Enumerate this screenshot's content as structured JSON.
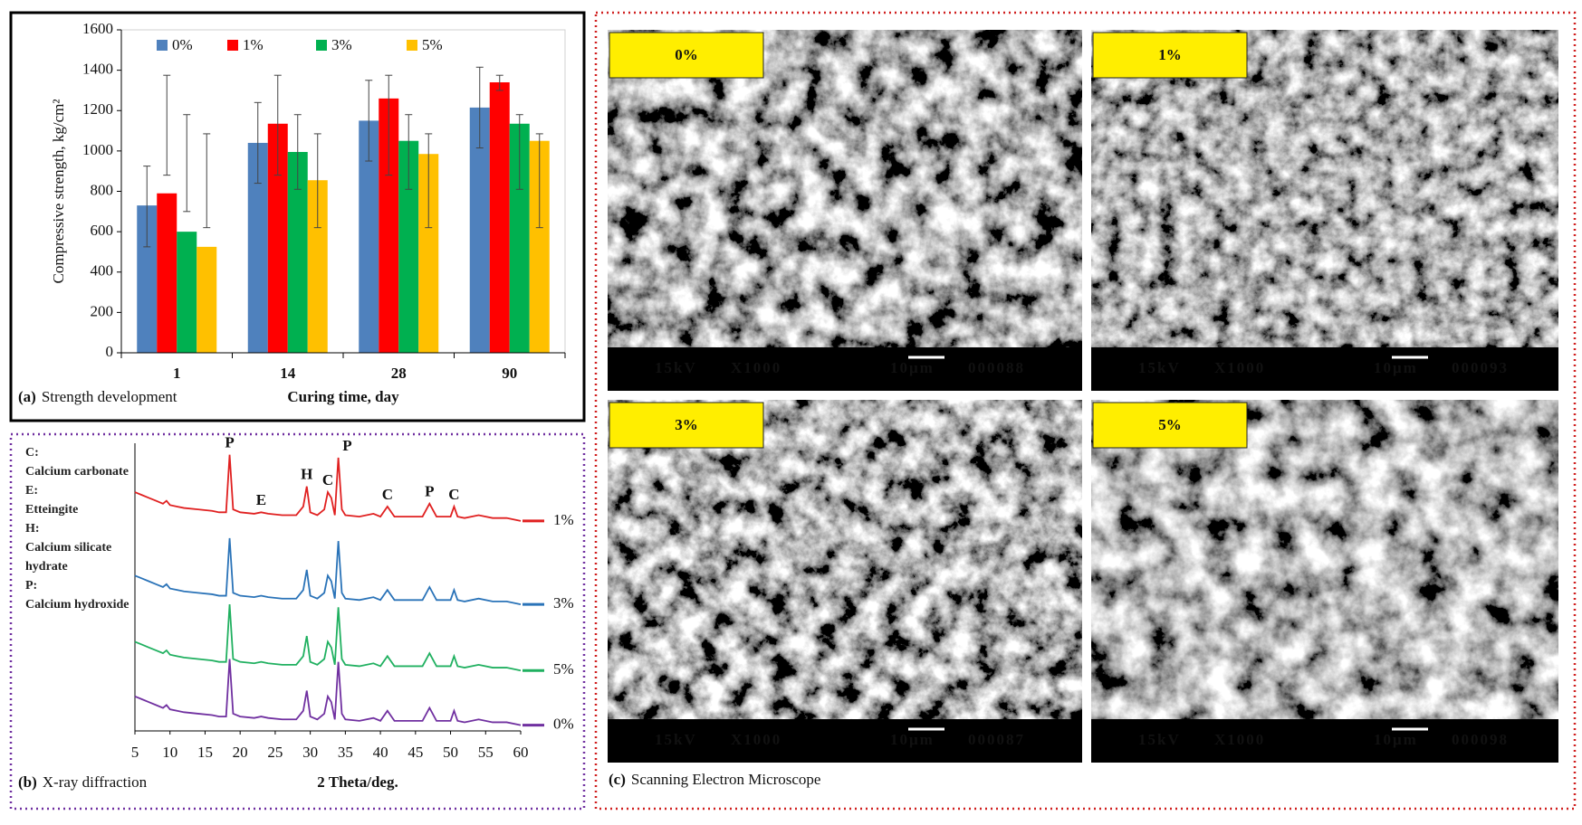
{
  "chart_data": [
    {
      "type": "bar",
      "ylabel": "Compressive strength, kg/cm²",
      "xlabel": "Curing time, day",
      "caption": {
        "label": "(a)",
        "text": "Strength development"
      },
      "categories": [
        "1",
        "14",
        "28",
        "90"
      ],
      "ylim": [
        0,
        1600
      ],
      "yticks": [
        0,
        200,
        400,
        600,
        800,
        1000,
        1200,
        1400,
        1600
      ],
      "grid": false,
      "legend": "top",
      "series": [
        {
          "name": "0%",
          "color": "#4f81bd",
          "values": [
            730,
            1040,
            1150,
            1215
          ],
          "error_bars": [
            [
              525,
              925
            ],
            [
              840,
              1240
            ],
            [
              950,
              1350
            ],
            [
              1015,
              1415
            ]
          ]
        },
        {
          "name": "1%",
          "color": "#ff0000",
          "values": [
            790,
            1135,
            1260,
            1340
          ],
          "error_bars": [
            [
              880,
              1375
            ],
            [
              880,
              1375
            ],
            [
              880,
              1375
            ],
            [
              1300,
              1375
            ]
          ]
        },
        {
          "name": "3%",
          "color": "#00b050",
          "values": [
            600,
            995,
            1050,
            1135
          ],
          "error_bars": [
            [
              700,
              1180
            ],
            [
              810,
              1180
            ],
            [
              810,
              1180
            ],
            [
              810,
              1180
            ]
          ]
        },
        {
          "name": "5%",
          "color": "#ffc000",
          "values": [
            525,
            855,
            985,
            1050
          ],
          "error_bars": [
            [
              620,
              1085
            ],
            [
              620,
              1085
            ],
            [
              620,
              1085
            ],
            [
              620,
              1085
            ]
          ]
        }
      ]
    },
    {
      "type": "line",
      "xlabel": "2 Theta/deg.",
      "caption": {
        "label": "(b)",
        "text": "X-ray diffraction"
      },
      "xlim": [
        5,
        60
      ],
      "xticks": [
        5,
        10,
        15,
        20,
        25,
        30,
        35,
        40,
        45,
        50,
        55,
        60
      ],
      "ylim": [
        0,
        100
      ],
      "legend": "right",
      "key": [
        {
          "symbol": "C:",
          "text": "Calcium carbonate"
        },
        {
          "symbol": "E:",
          "text": "Etteingite"
        },
        {
          "symbol": "H:",
          "text": "Calcium silicate hydrate"
        },
        {
          "symbol": "P:",
          "text": "Calcium hydroxide"
        }
      ],
      "annotations": [
        {
          "text": "P",
          "x": 18.5
        },
        {
          "text": "E",
          "x": 23
        },
        {
          "text": "H",
          "x": 29.5
        },
        {
          "text": "C",
          "x": 32.5
        },
        {
          "text": "P",
          "x": 34.5
        },
        {
          "text": "C",
          "x": 41
        },
        {
          "text": "P",
          "x": 47
        },
        {
          "text": "C",
          "x": 50.5
        }
      ],
      "x": [
        5,
        6,
        7,
        8,
        9,
        9.5,
        10,
        11,
        12,
        14,
        16,
        17,
        18,
        18.5,
        19,
        20,
        22,
        23,
        24,
        26,
        28,
        29,
        29.5,
        30,
        31,
        32,
        32.5,
        33,
        33.5,
        34,
        34.5,
        35,
        37,
        39,
        40,
        41,
        42,
        44,
        46,
        47,
        48,
        50,
        50.5,
        51,
        52,
        54,
        56,
        58,
        60
      ],
      "series": [
        {
          "name": "1%",
          "color": "#e02020",
          "values": [
            83,
            82,
            81,
            80,
            79,
            80,
            78.5,
            78,
            77.5,
            77,
            76.5,
            76,
            76,
            96,
            77,
            76,
            75.5,
            76,
            75.5,
            75,
            75,
            78,
            85,
            76,
            75,
            77,
            83,
            81,
            75,
            95,
            77,
            75,
            74.5,
            75.5,
            74.5,
            78,
            74.5,
            74.5,
            74.5,
            79,
            74.5,
            74.5,
            78,
            74.5,
            74,
            75,
            74,
            74,
            73
          ]
        },
        {
          "name": "3%",
          "color": "#2a73b8",
          "values": [
            54,
            53,
            52,
            51,
            50,
            51,
            49.5,
            49,
            48.5,
            48,
            47.5,
            47,
            47,
            67,
            48,
            47,
            46.5,
            47,
            46.5,
            46,
            46,
            49,
            56,
            47,
            46,
            48,
            54,
            52,
            46,
            66,
            48,
            46,
            45.5,
            46.5,
            45.5,
            49,
            45.5,
            45.5,
            45.5,
            50,
            45.5,
            45.5,
            49,
            45.5,
            45,
            46,
            45,
            45,
            44
          ]
        },
        {
          "name": "5%",
          "color": "#20b060",
          "values": [
            31,
            30,
            29,
            28,
            27,
            28,
            26.5,
            26,
            25.5,
            25,
            24.5,
            24,
            24,
            44,
            25,
            24,
            23.5,
            24,
            23.5,
            23,
            23,
            26,
            33,
            24,
            23,
            25,
            31,
            29,
            23,
            43,
            25,
            23,
            22.5,
            23.5,
            22.5,
            26,
            22.5,
            22.5,
            22.5,
            27,
            22.5,
            22.5,
            26,
            22.5,
            22,
            23,
            22,
            22,
            21
          ]
        },
        {
          "name": "0%",
          "color": "#7030a0",
          "values": [
            12,
            11,
            10,
            9,
            8,
            9,
            7.5,
            7,
            6.5,
            6,
            5.5,
            5,
            5,
            25,
            6,
            5,
            4.5,
            5,
            4.5,
            4,
            4,
            7,
            14,
            5,
            4,
            6,
            12,
            10,
            4,
            24,
            6,
            4,
            3.5,
            4.5,
            3.5,
            7,
            3.5,
            3.5,
            3.5,
            8,
            3.5,
            3.5,
            7,
            3.5,
            3,
            4,
            3,
            3,
            2
          ]
        }
      ]
    }
  ],
  "sem": {
    "caption": {
      "label": "(c)",
      "text": "Scanning Electron Microscope"
    },
    "panels": [
      {
        "label": "0%",
        "voltage": "15kV",
        "magnification": "X1000",
        "scale": "10μm",
        "id": "000088"
      },
      {
        "label": "1%",
        "voltage": "15kV",
        "magnification": "X1000",
        "scale": "10μm",
        "id": "000093"
      },
      {
        "label": "3%",
        "voltage": "15kV",
        "magnification": "X1000",
        "scale": "10μm",
        "id": "000087"
      },
      {
        "label": "5%",
        "voltage": "15kV",
        "magnification": "X1000",
        "scale": "10μm",
        "id": "000098"
      }
    ]
  }
}
